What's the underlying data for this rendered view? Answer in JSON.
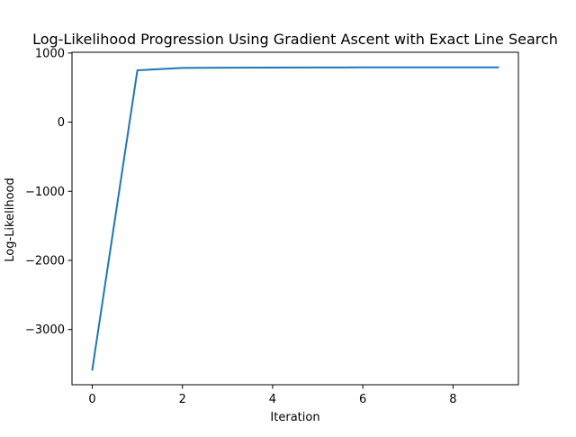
{
  "chart_data": {
    "type": "line",
    "title": "Log-Likelihood Progression Using Gradient Ascent with Exact Line Search",
    "xlabel": "Iteration",
    "ylabel": "Log-Likelihood",
    "x": [
      0,
      1,
      2,
      3,
      4,
      5,
      6,
      7,
      8,
      9
    ],
    "series": [
      {
        "values": [
          -3580,
          750,
          785,
          788,
          790,
          791,
          792,
          792,
          792,
          792
        ],
        "color": "#1f77b4"
      }
    ],
    "xlim": [
      -0.45,
      9.45
    ],
    "ylim": [
      -3799,
      1011
    ],
    "x_ticks": [
      0,
      2,
      4,
      6,
      8
    ],
    "x_tick_labels": [
      "0",
      "2",
      "4",
      "6",
      "8"
    ],
    "y_ticks": [
      1000,
      0,
      -1000,
      -2000,
      -3000
    ],
    "y_tick_labels": [
      "1000",
      "0",
      "−1000",
      "−2000",
      "−3000"
    ],
    "grid": false,
    "legend": "none"
  }
}
